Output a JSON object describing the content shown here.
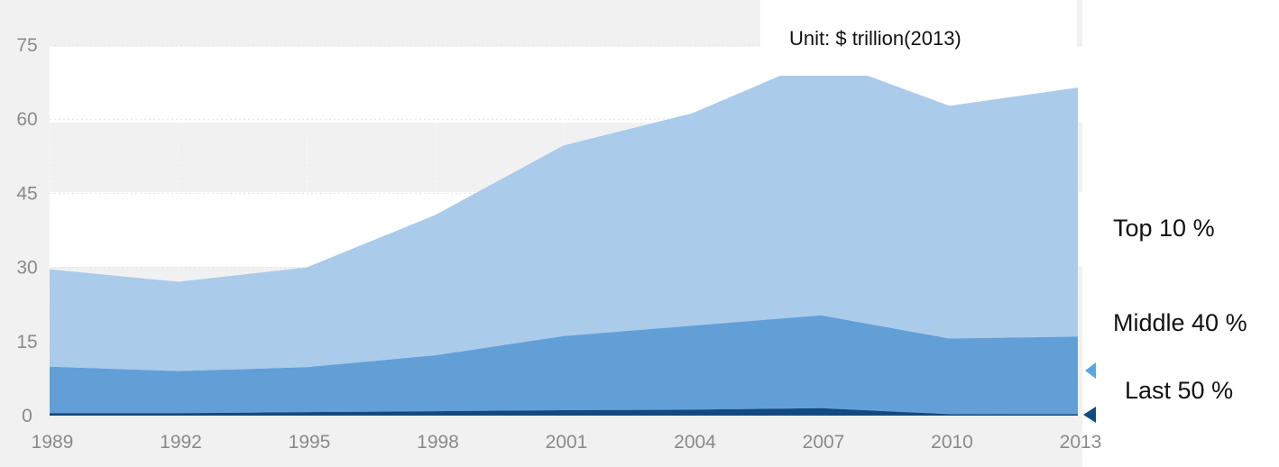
{
  "chart_data": {
    "type": "area",
    "stacked": true,
    "unit_label": "Unit:  $ trillion(2013)",
    "x": [
      "1989",
      "1992",
      "1995",
      "1998",
      "2001",
      "2004",
      "2007",
      "2010",
      "2013"
    ],
    "yticks": [
      "0",
      "15",
      "30",
      "45",
      "60",
      "75"
    ],
    "ylim": [
      0,
      75
    ],
    "grid": true,
    "series": [
      {
        "name": "Last 50 %",
        "values": [
          0.5,
          0.5,
          0.7,
          0.9,
          1.1,
          1.2,
          1.5,
          0.3,
          0.3
        ]
      },
      {
        "name": "Middle 40 %",
        "values": [
          9.4,
          8.5,
          9.1,
          11.3,
          15.0,
          17.0,
          18.8,
          15.3,
          15.7
        ]
      },
      {
        "name": "Top 10 %",
        "values": [
          19.7,
          18.1,
          20.2,
          28.4,
          38.6,
          43.0,
          52.0,
          47.1,
          50.4
        ]
      }
    ],
    "colors": {
      "Top 10 %": "#aacbea",
      "Middle 40 %": "#629fd7",
      "Last 50 %": "#114a82",
      "plot_bg": "#f1f1f1",
      "band_bg": "#ffffff"
    }
  }
}
